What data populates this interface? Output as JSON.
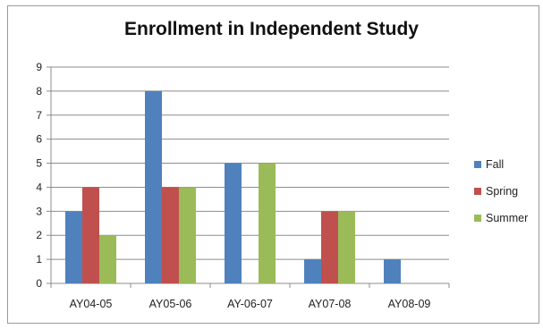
{
  "chart_data": {
    "type": "bar",
    "title": "Enrollment in Independent Study",
    "xlabel": "",
    "ylabel": "",
    "categories": [
      "AY04-05",
      "AY05-06",
      "AY-06-07",
      "AY07-08",
      "AY08-09"
    ],
    "series": [
      {
        "name": "Fall",
        "values": [
          3,
          8,
          5,
          1,
          1
        ],
        "color": "#4f81bd"
      },
      {
        "name": "Spring",
        "values": [
          4,
          4,
          0,
          3,
          0
        ],
        "color": "#c0504d"
      },
      {
        "name": "Summer",
        "values": [
          2,
          4,
          5,
          3,
          0
        ],
        "color": "#9bbb59"
      }
    ],
    "ylim": [
      0,
      9
    ],
    "yticks": [
      "0",
      "1",
      "2",
      "3",
      "4",
      "5",
      "6",
      "7",
      "8",
      "9"
    ],
    "grid": true,
    "legend": "right"
  }
}
